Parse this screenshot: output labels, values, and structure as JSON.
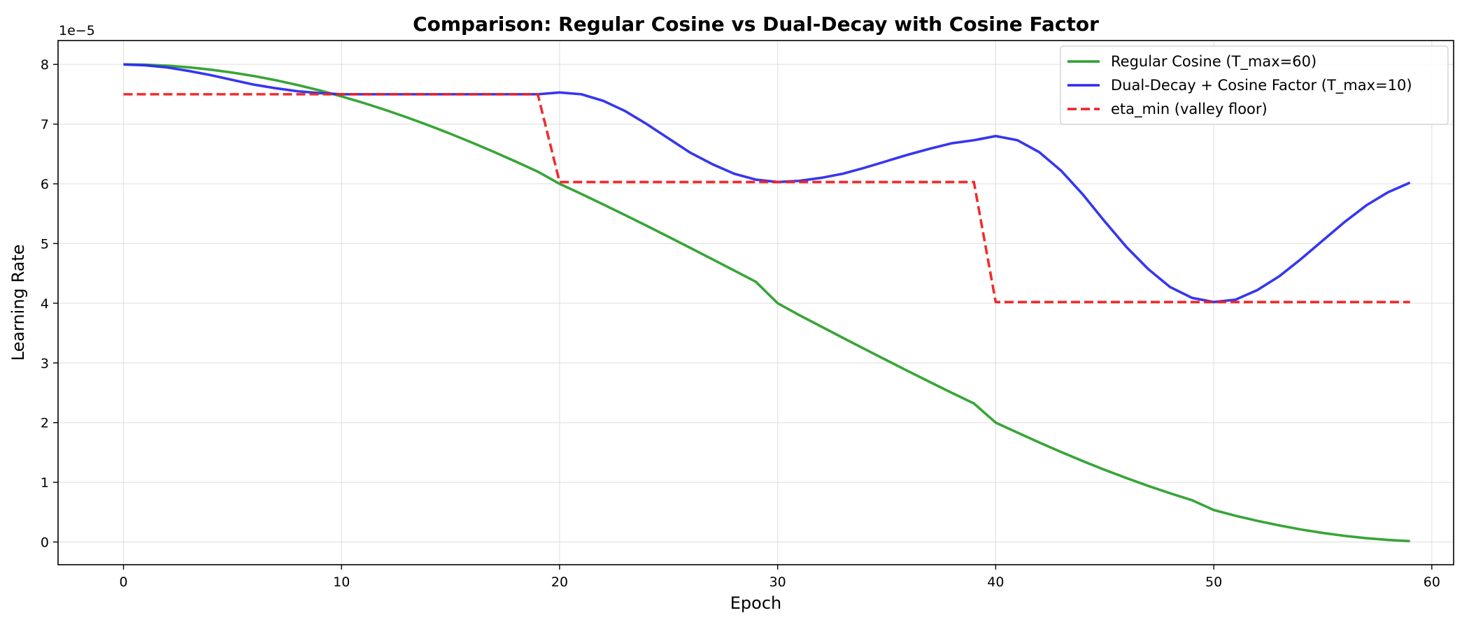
{
  "chart_data": {
    "type": "line",
    "title": "Comparison: Regular Cosine vs Dual-Decay with Cosine Factor",
    "xlabel": "Epoch",
    "ylabel": "Learning Rate",
    "y_offset_label": "1e−5",
    "xlim": [
      -3,
      61
    ],
    "ylim": [
      -0.38,
      8.4
    ],
    "y_scale_note": "values in units of 1e-5",
    "xticks": [
      0,
      10,
      20,
      30,
      40,
      50,
      60
    ],
    "yticks": [
      0,
      1,
      2,
      3,
      4,
      5,
      6,
      7,
      8
    ],
    "grid": true,
    "legend_position": "top-right",
    "series": [
      {
        "name": "Regular Cosine (T_max=60)",
        "color": "#2ca02c",
        "style": "solid",
        "x": [
          0,
          1,
          2,
          3,
          4,
          5,
          6,
          7,
          8,
          9,
          10,
          11,
          12,
          13,
          14,
          15,
          16,
          17,
          18,
          19,
          20,
          21,
          22,
          23,
          24,
          25,
          26,
          27,
          28,
          29,
          30,
          31,
          32,
          33,
          34,
          35,
          36,
          37,
          38,
          39,
          40,
          41,
          42,
          43,
          44,
          45,
          46,
          47,
          48,
          49,
          50,
          51,
          52,
          53,
          54,
          55,
          56,
          57,
          58,
          59
        ],
        "y": [
          8.0,
          7.995,
          7.978,
          7.951,
          7.912,
          7.863,
          7.804,
          7.734,
          7.654,
          7.564,
          7.464,
          7.356,
          7.239,
          7.113,
          6.979,
          6.837,
          6.688,
          6.533,
          6.371,
          6.204,
          6.0,
          5.83,
          5.655,
          5.477,
          5.296,
          5.112,
          4.926,
          4.738,
          4.549,
          4.359,
          4.0,
          3.799,
          3.609,
          3.419,
          3.231,
          3.044,
          2.859,
          2.677,
          2.497,
          2.321,
          2.0,
          1.832,
          1.667,
          1.508,
          1.355,
          1.209,
          1.071,
          0.939,
          0.816,
          0.701,
          0.536,
          0.44,
          0.355,
          0.278,
          0.21,
          0.152,
          0.103,
          0.064,
          0.035,
          0.015
        ]
      },
      {
        "name": "Dual-Decay + Cosine Factor (T_max=10)",
        "color": "#2b2bef",
        "style": "solid",
        "x": [
          0,
          1,
          2,
          3,
          4,
          5,
          6,
          7,
          8,
          9,
          10,
          11,
          12,
          13,
          14,
          15,
          16,
          17,
          18,
          19,
          20,
          21,
          22,
          23,
          24,
          25,
          26,
          27,
          28,
          29,
          30,
          31,
          32,
          33,
          34,
          35,
          36,
          37,
          38,
          39,
          40,
          41,
          42,
          43,
          44,
          45,
          46,
          47,
          48,
          49,
          50,
          51,
          52,
          53,
          54,
          55,
          56,
          57,
          58,
          59
        ],
        "y": [
          8.0,
          7.985,
          7.95,
          7.89,
          7.82,
          7.74,
          7.66,
          7.6,
          7.55,
          7.52,
          7.5,
          7.5,
          7.5,
          7.5,
          7.5,
          7.5,
          7.5,
          7.5,
          7.5,
          7.5,
          7.53,
          7.5,
          7.39,
          7.22,
          7.0,
          6.76,
          6.52,
          6.33,
          6.17,
          6.07,
          6.03,
          6.05,
          6.1,
          6.17,
          6.27,
          6.38,
          6.49,
          6.59,
          6.68,
          6.73,
          6.8,
          6.73,
          6.53,
          6.22,
          5.82,
          5.37,
          4.94,
          4.57,
          4.27,
          4.09,
          4.02,
          4.06,
          4.22,
          4.45,
          4.74,
          5.05,
          5.36,
          5.64,
          5.86,
          6.02
        ]
      },
      {
        "name": "eta_min (valley floor)",
        "color": "#ee2222",
        "style": "dashed",
        "x": [
          0,
          19,
          20,
          39,
          40,
          59
        ],
        "y": [
          7.5,
          7.5,
          6.03,
          6.03,
          4.02,
          4.02
        ]
      }
    ]
  }
}
